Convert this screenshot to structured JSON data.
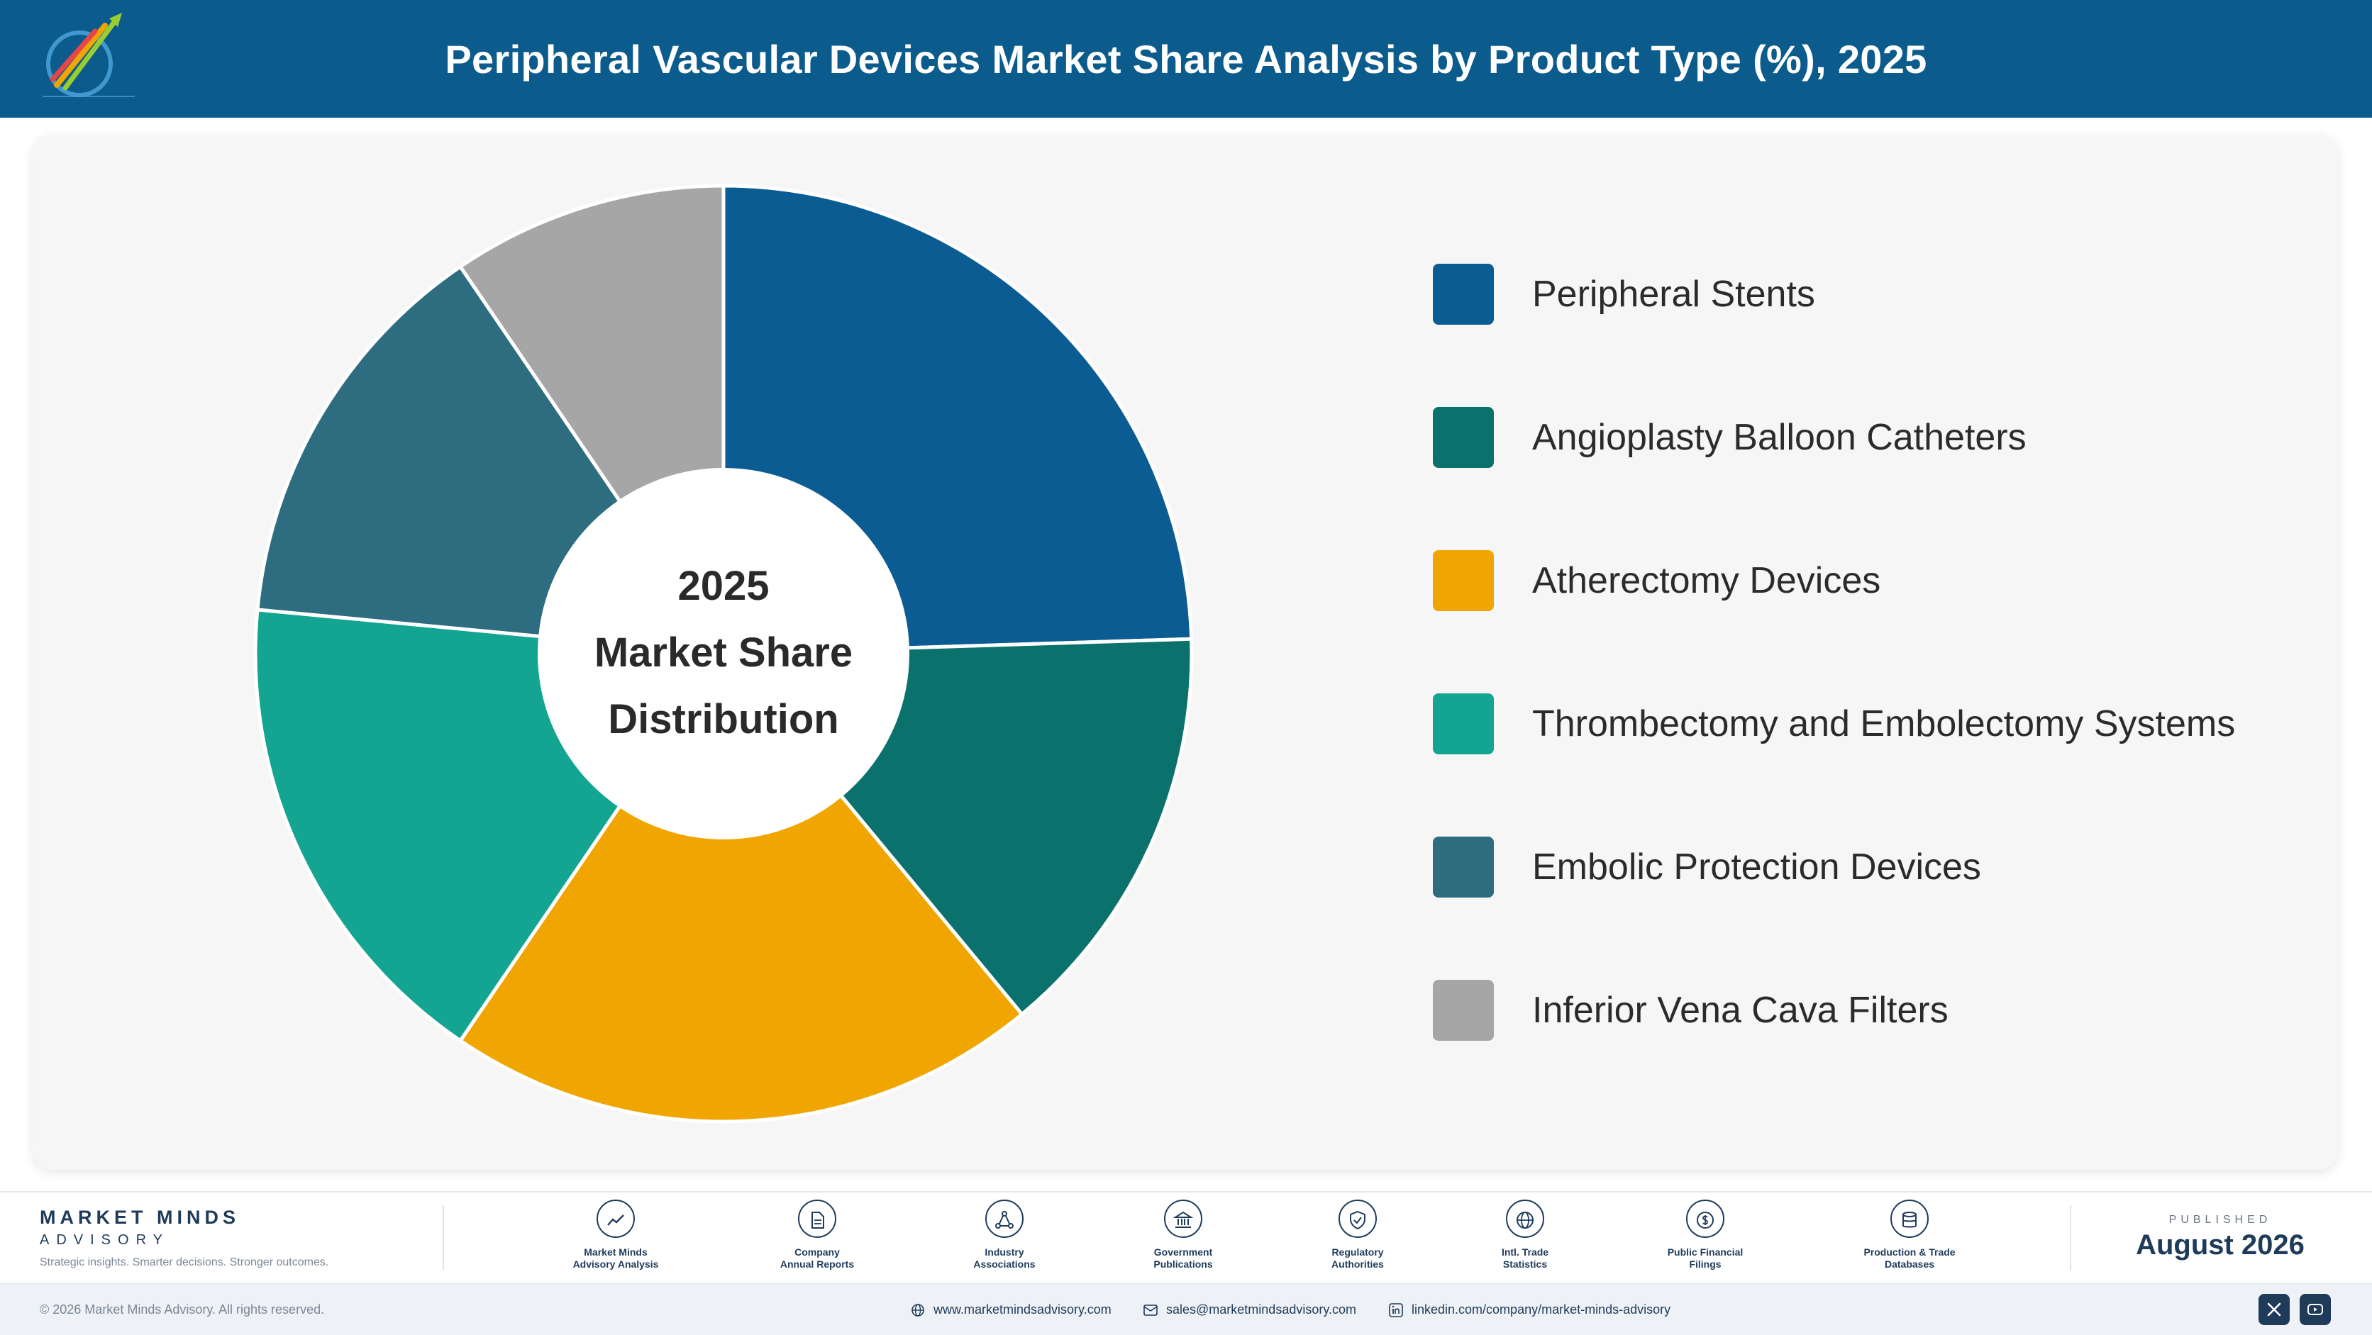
{
  "header": {
    "title": "Peripheral Vascular Devices Market Share Analysis by Product Type (%), 2025"
  },
  "chart_data": {
    "type": "pie",
    "title": "Peripheral Vascular Devices Market Share Analysis by Product Type (%), 2025",
    "center_text": [
      "2025",
      "Market Share",
      "Distribution"
    ],
    "legend_position": "right",
    "categories": [
      "Peripheral Stents",
      "Angioplasty Balloon Catheters",
      "Atherectomy Devices",
      "Thrombectomy and Embolectomy Systems",
      "Embolic Protection Devices",
      "Inferior Vena Cava Filters"
    ],
    "values": [
      24.5,
      14.5,
      20.5,
      17,
      14,
      9.5
    ],
    "colors": [
      "#0b5c92",
      "#0b716c",
      "#f0a500",
      "#13a592",
      "#2e6d80",
      "#a6a6a6"
    ]
  },
  "footer": {
    "brand_name": "MARKET MINDS",
    "brand_sub": "ADVISORY",
    "brand_tagline": "Strategic insights. Smarter decisions. Stronger outcomes.",
    "sources": [
      {
        "icon": "chart-line-icon",
        "label": [
          "Market Minds",
          "Advisory Analysis"
        ]
      },
      {
        "icon": "document-icon",
        "label": [
          "Company",
          "Annual Reports"
        ]
      },
      {
        "icon": "network-icon",
        "label": [
          "Industry",
          "Associations"
        ]
      },
      {
        "icon": "government-building-icon",
        "label": [
          "Government",
          "Publications"
        ]
      },
      {
        "icon": "shield-check-icon",
        "label": [
          "Regulatory",
          "Authorities"
        ]
      },
      {
        "icon": "globe-icon",
        "label": [
          "Intl. Trade",
          "Statistics"
        ]
      },
      {
        "icon": "coin-icon",
        "label": [
          "Public Financial",
          "Filings"
        ]
      },
      {
        "icon": "database-icon",
        "label": [
          "Production & Trade",
          "Databases"
        ]
      }
    ],
    "published_label": "PUBLISHED",
    "published_date": "August 2026",
    "copyright": "© 2026 Market Minds Advisory. All rights reserved.",
    "website": "www.marketmindsadvisory.com",
    "email": "sales@marketmindsadvisory.com",
    "linkedin": "linkedin.com/company/market-minds-advisory"
  }
}
